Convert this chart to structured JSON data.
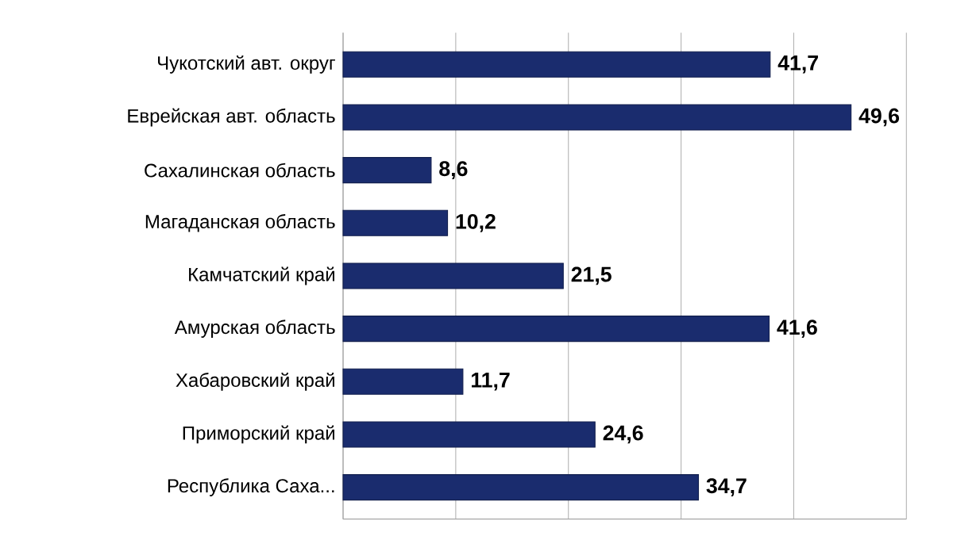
{
  "chart_data": {
    "type": "bar",
    "orientation": "horizontal",
    "categories": [
      "Чукотский авт. округ",
      "Еврейская авт. область",
      "Сахалинская область",
      "Магаданская область",
      "Камчатский край",
      "Амурская область",
      "Хабаровский край",
      "Приморский край",
      "Республика Саха..."
    ],
    "values": [
      41.7,
      49.6,
      8.6,
      10.2,
      21.5,
      41.6,
      11.7,
      24.6,
      34.7
    ],
    "value_labels": [
      "41,7",
      "49,6",
      "8,6",
      "10,2",
      "21,5",
      "41,6",
      "11,7",
      "24,6",
      "34,7"
    ],
    "color": "#1a2c6e",
    "xlim": [
      0,
      55
    ],
    "xticks": [
      {
        "value": 0,
        "label": null
      },
      {
        "value": 11,
        "label": null
      },
      {
        "value": 22,
        "label": null
      },
      {
        "value": 33,
        "label": null
      },
      {
        "value": 44,
        "label": null
      },
      {
        "value": 55,
        "label": null
      }
    ],
    "grid": "x",
    "tick_labels": "y"
  }
}
